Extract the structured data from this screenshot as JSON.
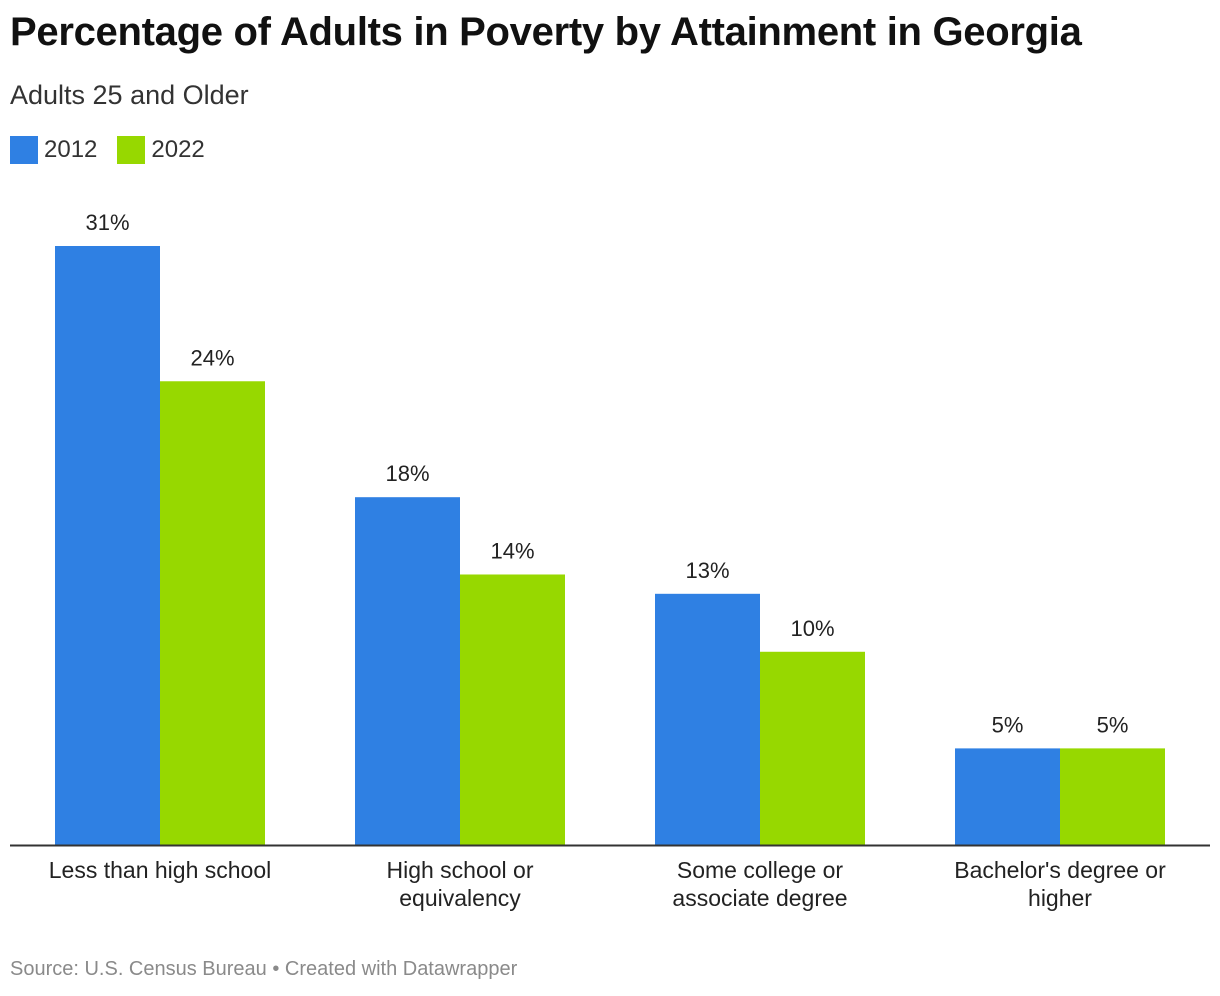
{
  "chart_data": {
    "type": "bar",
    "title": "Percentage of Adults in Poverty by Attainment in Georgia",
    "subtitle": "Adults 25 and Older",
    "categories": [
      [
        "Less than high school"
      ],
      [
        "High school or",
        "equivalency"
      ],
      [
        "Some college or",
        "associate degree"
      ],
      [
        "Bachelor's degree or",
        "higher"
      ]
    ],
    "series": [
      {
        "name": "2012",
        "color": "#2f80e3",
        "values": [
          31,
          18,
          13,
          5
        ],
        "labels": [
          "31%",
          "18%",
          "13%",
          "5%"
        ]
      },
      {
        "name": "2022",
        "color": "#97d800",
        "values": [
          24,
          14,
          10,
          5
        ],
        "labels": [
          "24%",
          "14%",
          "10%",
          "5%"
        ]
      }
    ],
    "ylim": [
      0,
      31
    ],
    "grid": false,
    "legend": "top-left",
    "footer": "Source: U.S. Census Bureau • Created with Datawrapper"
  }
}
